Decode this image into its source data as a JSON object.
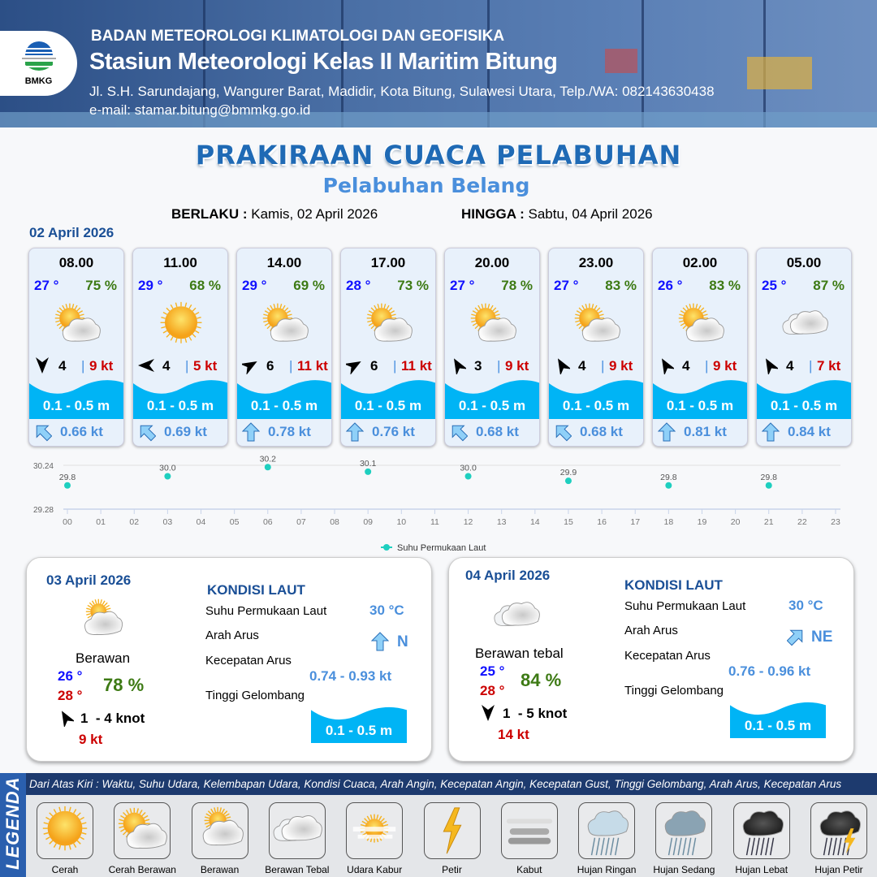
{
  "header": {
    "agency": "BADAN METEOROLOGI KLIMATOLOGI DAN GEOFISIKA",
    "station": "Stasiun Meteorologi Kelas II Maritim Bitung",
    "address": "Jl. S.H. Sarundajang, Wangurer Barat, Madidir, Kota Bitung, Sulawesi Utara, Telp./WA: 082143630438",
    "email": "e-mail: stamar.bitung@bmmkg.go.id",
    "logo_text": "BMKG"
  },
  "title": "PRAKIRAAN CUACA PELABUHAN",
  "subtitle": "Pelabuhan Belang",
  "validity": {
    "from_label": "BERLAKU :",
    "from": "Kamis, 02 April 2026",
    "to_label": "HINGGA :",
    "to": "Sabtu, 04 April 2026"
  },
  "day1": {
    "date": "02 April 2026",
    "cards": [
      {
        "time": "08.00",
        "temp": "27 °",
        "hum": "75 %",
        "weather": "cerah-berawan",
        "wind_dir_deg": 180,
        "wind": "4",
        "gust": "9 kt",
        "wave": "0.1 - 0.5 m",
        "cur_dir_deg": 315,
        "cur": "0.66 kt"
      },
      {
        "time": "11.00",
        "temp": "29 °",
        "hum": "68 %",
        "weather": "cerah",
        "wind_dir_deg": 270,
        "wind": "4",
        "gust": "5 kt",
        "wave": "0.1 - 0.5 m",
        "cur_dir_deg": 315,
        "cur": "0.69 kt"
      },
      {
        "time": "14.00",
        "temp": "29 °",
        "hum": "69 %",
        "weather": "cerah-berawan",
        "wind_dir_deg": 60,
        "wind": "6",
        "gust": "11 kt",
        "wave": "0.1 - 0.5 m",
        "cur_dir_deg": 0,
        "cur": "0.78 kt"
      },
      {
        "time": "17.00",
        "temp": "28 °",
        "hum": "73 %",
        "weather": "cerah-berawan",
        "wind_dir_deg": 60,
        "wind": "6",
        "gust": "11 kt",
        "wave": "0.1 - 0.5 m",
        "cur_dir_deg": 0,
        "cur": "0.76 kt"
      },
      {
        "time": "20.00",
        "temp": "27 °",
        "hum": "78 %",
        "weather": "cerah-berawan",
        "wind_dir_deg": 330,
        "wind": "3",
        "gust": "9 kt",
        "wave": "0.1 - 0.5 m",
        "cur_dir_deg": 315,
        "cur": "0.68 kt"
      },
      {
        "time": "23.00",
        "temp": "27 °",
        "hum": "83 %",
        "weather": "cerah-berawan",
        "wind_dir_deg": 330,
        "wind": "4",
        "gust": "9 kt",
        "wave": "0.1 - 0.5 m",
        "cur_dir_deg": 315,
        "cur": "0.68 kt"
      },
      {
        "time": "02.00",
        "temp": "26 °",
        "hum": "83 %",
        "weather": "cerah-berawan",
        "wind_dir_deg": 330,
        "wind": "4",
        "gust": "9 kt",
        "wave": "0.1 - 0.5 m",
        "cur_dir_deg": 0,
        "cur": "0.81 kt"
      },
      {
        "time": "05.00",
        "temp": "25 °",
        "hum": "87 %",
        "weather": "berawan-tebal",
        "wind_dir_deg": 330,
        "wind": "4",
        "gust": "7 kt",
        "wave": "0.1 - 0.5 m",
        "cur_dir_deg": 0,
        "cur": "0.84 kt"
      }
    ]
  },
  "chart_data": {
    "type": "scatter",
    "x_ticks": [
      "00",
      "01",
      "02",
      "03",
      "04",
      "05",
      "06",
      "07",
      "08",
      "09",
      "10",
      "11",
      "12",
      "13",
      "14",
      "15",
      "16",
      "17",
      "18",
      "19",
      "20",
      "21",
      "22",
      "23"
    ],
    "y_ticks": [
      "30.24",
      "29.28"
    ],
    "ylim": [
      29.28,
      30.24
    ],
    "grid": true,
    "legend_position": "bottom",
    "series": [
      {
        "name": "Suhu Permukaan Laut",
        "color": "#1ecfbf",
        "x": [
          0,
          3,
          6,
          9,
          12,
          15,
          18,
          21
        ],
        "y": [
          29.8,
          30.0,
          30.2,
          30.1,
          30.0,
          29.9,
          29.8,
          29.8
        ],
        "labels": [
          "29.8",
          "30.0",
          "30.2",
          "30.1",
          "30.0",
          "29.9",
          "29.8",
          "29.8"
        ]
      }
    ]
  },
  "panels": [
    {
      "date": "03 April 2026",
      "weather": "berawan",
      "condition": "Berawan",
      "tmin": "26 °",
      "tmax": "28 °",
      "hum": "78 %",
      "wind_dir_deg": 330,
      "wind": "1  - 4 knot",
      "gust": "9 kt",
      "sea_title": "KONDISI LAUT",
      "sst_label": "Suhu Permukaan Laut",
      "sst": "30 °C",
      "cur_dir_label": "Arah Arus",
      "cur_dir": "N",
      "cur_dir_deg": 0,
      "cur_spd_label": "Kecepatan Arus",
      "cur_spd": "0.74 - 0.93 kt",
      "wave_label": "Tinggi Gelombang",
      "wave": "0.1 - 0.5 m"
    },
    {
      "date": "04 April 2026",
      "weather": "berawan-tebal",
      "condition": "Berawan tebal",
      "tmin": "25 °",
      "tmax": "28 °",
      "hum": "84 %",
      "wind_dir_deg": 180,
      "wind": "1  - 5 knot",
      "gust": "14 kt",
      "sea_title": "KONDISI LAUT",
      "sst_label": "Suhu Permukaan Laut",
      "sst": "30 °C",
      "cur_dir_label": "Arah Arus",
      "cur_dir": "NE",
      "cur_dir_deg": 45,
      "cur_spd_label": "Kecepatan Arus",
      "cur_spd": "0.76 - 0.96 kt",
      "wave_label": "Tinggi Gelombang",
      "wave": "0.1 - 0.5 m"
    }
  ],
  "legend": {
    "title": "LEGENDA",
    "description": "Dari Atas Kiri : Waktu, Suhu Udara, Kelembapan Udara, Kondisi Cuaca, Arah Angin, Kecepatan Angin, Kecepatan Gust, Tinggi Gelombang, Arah Arus, Kecepatan Arus",
    "items": [
      {
        "label": "Cerah",
        "icon": "cerah"
      },
      {
        "label": "Cerah Berawan",
        "icon": "cerah-berawan"
      },
      {
        "label": "Berawan",
        "icon": "berawan"
      },
      {
        "label": "Berawan Tebal",
        "icon": "berawan-tebal"
      },
      {
        "label": "Udara Kabur",
        "icon": "udara-kabur"
      },
      {
        "label": "Petir",
        "icon": "petir"
      },
      {
        "label": "Kabut",
        "icon": "kabut"
      },
      {
        "label": "Hujan Ringan",
        "icon": "hujan-ringan"
      },
      {
        "label": "Hujan Sedang",
        "icon": "hujan-sedang"
      },
      {
        "label": "Hujan Lebat",
        "icon": "hujan-lebat"
      },
      {
        "label": "Hujan Petir",
        "icon": "hujan-petir"
      }
    ]
  },
  "colors": {
    "temp": "#1010ff",
    "humidity": "#3d7a14",
    "gust": "#cc0000",
    "wave": "#00b4f5",
    "current": "#4a8fdc",
    "title": "#1f6ab5"
  }
}
